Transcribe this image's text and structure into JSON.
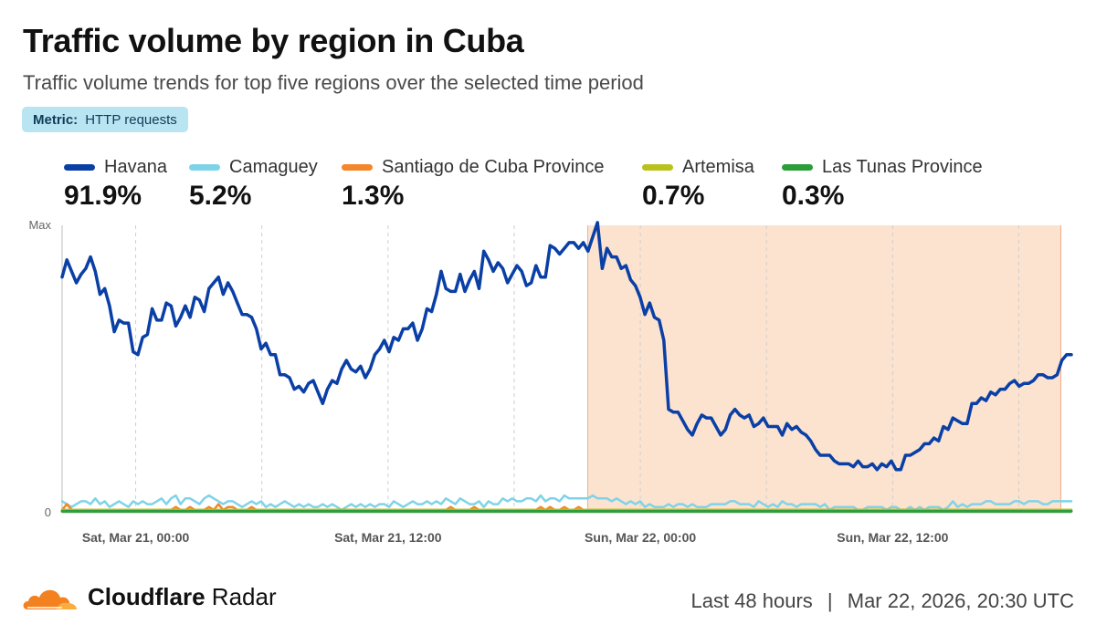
{
  "header": {
    "title": "Traffic volume by region in Cuba",
    "subtitle": "Traffic volume trends for top five regions over the selected time period",
    "metric_label": "Metric:",
    "metric_value": "HTTP requests"
  },
  "legend": [
    {
      "name": "Havana",
      "share": "91.9%",
      "color": "#0a3fa6"
    },
    {
      "name": "Camaguey",
      "share": "5.2%",
      "color": "#7fd3e8"
    },
    {
      "name": "Santiago de Cuba Province",
      "share": "1.3%",
      "color": "#f5862a"
    },
    {
      "name": "Artemisa",
      "share": "0.7%",
      "color": "#b9c21c"
    },
    {
      "name": "Las Tunas Province",
      "share": "0.3%",
      "color": "#2b9e3a"
    }
  ],
  "footer": {
    "brand_bold": "Cloudflare",
    "brand_light": " Radar",
    "period": "Last 48 hours",
    "separator": "|",
    "timestamp": "Mar 22, 2026, 20:30 UTC"
  },
  "chart_data": {
    "type": "line",
    "x_range": [
      "2026-03-20 20:30",
      "2026-03-22 20:30"
    ],
    "x_ticks": [
      "Sat, Mar 21, 00:00",
      "Sat, Mar 21, 12:00",
      "Sun, Mar 22, 00:00",
      "Sun, Mar 22, 12:00"
    ],
    "y_ticks": [
      "0",
      "Max"
    ],
    "ylim": [
      0,
      100
    ],
    "grid": true,
    "highlight_range": [
      "2026-03-21 21:30",
      "2026-03-22 20:00"
    ],
    "highlight_color": "#fbe3d0",
    "series": [
      {
        "name": "Havana",
        "color": "#0a3fa6",
        "values": [
          82,
          88,
          84,
          80,
          83,
          85,
          89,
          84,
          76,
          78,
          72,
          63,
          67,
          66,
          66,
          56,
          55,
          61,
          62,
          71,
          67,
          67,
          73,
          72,
          65,
          68,
          72,
          68,
          75,
          74,
          70,
          78,
          80,
          82,
          76,
          80,
          77,
          73,
          69,
          69,
          68,
          64,
          57,
          59,
          55,
          55,
          48,
          48,
          47,
          43,
          44,
          42,
          45,
          46,
          42,
          38,
          43,
          46,
          45,
          50,
          53,
          50,
          49,
          51,
          47,
          50,
          55,
          57,
          60,
          56,
          61,
          60,
          64,
          64,
          66,
          60,
          64,
          71,
          70,
          76,
          84,
          78,
          77,
          77,
          83,
          77,
          81,
          84,
          78,
          91,
          88,
          84,
          87,
          85,
          80,
          83,
          86,
          84,
          79,
          80,
          86,
          82,
          82,
          93,
          92,
          90,
          92,
          94,
          94,
          92,
          94,
          91,
          96,
          101,
          85,
          92,
          89,
          89,
          85,
          86,
          81,
          79,
          75,
          69,
          73,
          68,
          67,
          60,
          36,
          35,
          35,
          32,
          29,
          27,
          31,
          34,
          33,
          33,
          30,
          27,
          29,
          34,
          36,
          34,
          33,
          34,
          30,
          31,
          33,
          30,
          30,
          30,
          27,
          31,
          29,
          30,
          28,
          27,
          25,
          22,
          20,
          20,
          20,
          18,
          17,
          17,
          17,
          16,
          18,
          16,
          16,
          17,
          15,
          17,
          16,
          18,
          15,
          15,
          20,
          20,
          21,
          22,
          24,
          24,
          26,
          25,
          30,
          29,
          33,
          32,
          31,
          31,
          38,
          38,
          40,
          39,
          42,
          41,
          43,
          43,
          45,
          46,
          44,
          45,
          45,
          46,
          48,
          48,
          47,
          47,
          48,
          53,
          55,
          55
        ],
        "width": 3.5
      },
      {
        "name": "Camaguey",
        "color": "#7fd3e8",
        "values": [
          4,
          3,
          2,
          3,
          4,
          4,
          3,
          5,
          3,
          4,
          2,
          3,
          4,
          3,
          2,
          4,
          3,
          4,
          3,
          3,
          4,
          5,
          3,
          5,
          6,
          3,
          5,
          5,
          4,
          3,
          5,
          6,
          5,
          4,
          3,
          4,
          4,
          3,
          2,
          3,
          4,
          3,
          4,
          2,
          3,
          2,
          3,
          4,
          3,
          2,
          3,
          2,
          3,
          2,
          2,
          3,
          2,
          3,
          2,
          1,
          2,
          3,
          2,
          3,
          2,
          3,
          2,
          3,
          3,
          2,
          4,
          3,
          2,
          3,
          4,
          3,
          3,
          4,
          3,
          4,
          3,
          5,
          4,
          3,
          5,
          4,
          3,
          3,
          4,
          2,
          4,
          3,
          3,
          5,
          4,
          5,
          4,
          4,
          5,
          5,
          4,
          6,
          4,
          5,
          5,
          4,
          6,
          5,
          5,
          5,
          5,
          5,
          6,
          5,
          5,
          5,
          4,
          5,
          4,
          3,
          4,
          3,
          4,
          2,
          3,
          2,
          2,
          2,
          3,
          2,
          3,
          3,
          2,
          3,
          2,
          2,
          2,
          3,
          3,
          3,
          3,
          4,
          4,
          3,
          3,
          3,
          2,
          4,
          3,
          2,
          3,
          2,
          4,
          3,
          3,
          2,
          3,
          3,
          3,
          3,
          2,
          3,
          1,
          2,
          2,
          2,
          2,
          2,
          1,
          1,
          2,
          2,
          2,
          2,
          1,
          2,
          2,
          1,
          1,
          2,
          1,
          2,
          1,
          2,
          2,
          2,
          1,
          2,
          4,
          2,
          3,
          2,
          3,
          3,
          3,
          4,
          4,
          3,
          3,
          3,
          3,
          4,
          4,
          3,
          4,
          4,
          4,
          3,
          3,
          4,
          4,
          4,
          4,
          4
        ],
        "width": 2.5
      },
      {
        "name": "Santiago de Cuba Province",
        "color": "#f5862a",
        "values": [
          1,
          3,
          1,
          1,
          1,
          1,
          1,
          1,
          1,
          1,
          1,
          1,
          1,
          1,
          1,
          1,
          1,
          1,
          1,
          1,
          1,
          1,
          1,
          1,
          2,
          1,
          1,
          2,
          1,
          1,
          1,
          2,
          1,
          3,
          1,
          2,
          2,
          1,
          1,
          1,
          2,
          1,
          1,
          1,
          1,
          1,
          1,
          1,
          1,
          1,
          1,
          1,
          1,
          1,
          1,
          1,
          1,
          1,
          1,
          1,
          1,
          1,
          1,
          1,
          1,
          1,
          1,
          1,
          1,
          1,
          1,
          1,
          1,
          1,
          1,
          1,
          1,
          1,
          1,
          1,
          1,
          1,
          2,
          1,
          1,
          1,
          1,
          2,
          1,
          1,
          1,
          1,
          1,
          1,
          1,
          1,
          1,
          1,
          1,
          1,
          1,
          2,
          1,
          2,
          1,
          1,
          2,
          1,
          1,
          2,
          1,
          1,
          1,
          1,
          1,
          1,
          1,
          1,
          1,
          1,
          1,
          1,
          1,
          1,
          1,
          1,
          1,
          1,
          1,
          1,
          1,
          1,
          1,
          1,
          1,
          1,
          1,
          1,
          1,
          1,
          1,
          1,
          1,
          1,
          1,
          1,
          1,
          1,
          1,
          1,
          1,
          1,
          1,
          1,
          1,
          1,
          1,
          1,
          1,
          1,
          1,
          1,
          1,
          1,
          1,
          1,
          1,
          1,
          1,
          1,
          1,
          1,
          1,
          1,
          1,
          1,
          1,
          1,
          1,
          1,
          1,
          1,
          1,
          1,
          1,
          1,
          1,
          1,
          1,
          1,
          1,
          1,
          1,
          1,
          1,
          1,
          1,
          1,
          1,
          1,
          1,
          1,
          1,
          1,
          1,
          1,
          1,
          1,
          1,
          1,
          1,
          1,
          1,
          1
        ],
        "width": 2.5
      },
      {
        "name": "Artemisa",
        "color": "#b9c21c",
        "values": [
          1,
          1,
          1,
          1,
          1,
          1,
          1,
          1,
          1,
          1,
          1,
          1,
          1,
          1,
          1,
          1,
          1,
          1,
          1,
          1,
          1,
          1,
          1,
          1,
          1,
          1,
          1,
          1,
          1,
          1,
          1,
          1,
          1,
          1,
          1,
          1,
          1,
          1,
          1,
          1,
          1,
          1,
          1,
          1,
          1,
          1,
          1,
          1,
          1,
          1,
          1,
          1,
          1,
          1,
          1,
          1,
          1,
          1,
          1,
          1,
          1,
          1,
          1,
          1,
          1,
          1,
          1,
          1,
          1,
          1,
          1,
          1,
          1,
          1,
          1,
          1,
          1,
          1,
          1,
          1,
          1,
          1,
          1,
          1,
          1,
          1,
          1,
          1,
          1,
          1,
          1,
          1,
          1,
          1,
          1,
          1,
          1,
          1,
          1,
          1,
          1,
          1,
          1,
          1,
          1,
          1,
          1,
          1,
          1,
          1,
          1,
          1,
          1,
          1,
          1,
          1,
          1,
          1,
          1,
          1,
          1,
          1,
          1,
          1,
          1,
          1,
          1,
          1,
          1,
          1,
          1,
          1,
          1,
          1,
          1,
          1,
          1,
          1,
          1,
          1,
          1,
          1,
          1,
          1,
          1,
          1,
          1,
          1,
          1,
          1,
          1,
          1,
          1,
          1,
          1,
          1,
          1,
          1,
          1,
          1,
          1,
          1,
          1,
          1,
          1,
          1,
          1,
          1,
          1,
          1,
          1,
          1,
          1,
          1,
          1,
          1,
          1,
          1,
          1,
          1,
          1,
          1,
          1,
          1,
          1,
          1,
          1,
          1,
          1,
          1,
          1,
          1,
          1,
          1,
          1,
          1,
          1,
          1,
          1,
          1,
          1,
          1,
          1,
          1,
          1,
          1,
          1,
          1,
          1,
          1,
          1,
          1,
          1,
          1
        ],
        "width": 2.5
      },
      {
        "name": "Las Tunas Province",
        "color": "#2b9e3a",
        "values": [
          0.5,
          0.5,
          0.5,
          0.5,
          0.5,
          0.5,
          0.5,
          0.5,
          0.5,
          0.5,
          0.5,
          0.5,
          0.5,
          0.5,
          0.5,
          0.5,
          0.5,
          0.5,
          0.5,
          0.5,
          0.5,
          0.5,
          0.5,
          0.5,
          0.5,
          0.5,
          0.5,
          0.5,
          0.5,
          0.5,
          0.5,
          0.5,
          0.5,
          0.5,
          0.5,
          0.5,
          0.5,
          0.5,
          0.5,
          0.5,
          0.5,
          0.5,
          0.5,
          0.5,
          0.5,
          0.5,
          0.5,
          0.5,
          0.5,
          0.5,
          0.5,
          0.5,
          0.5,
          0.5,
          0.5,
          0.5,
          0.5,
          0.5,
          0.5,
          0.5,
          0.5,
          0.5,
          0.5,
          0.5,
          0.5,
          0.5,
          0.5,
          0.5,
          0.5,
          0.5,
          0.5,
          0.5,
          0.5,
          0.5,
          0.5,
          0.5,
          0.5,
          0.5,
          0.5,
          0.5,
          0.5,
          0.5,
          0.5,
          0.5,
          0.5,
          0.5,
          0.5,
          0.5,
          0.5,
          0.5,
          0.5,
          0.5,
          0.5,
          0.5,
          0.5,
          0.5,
          0.5,
          0.5,
          0.5,
          0.5,
          0.5,
          0.5,
          0.5,
          0.5,
          0.5,
          0.5,
          0.5,
          0.5,
          0.5,
          0.5,
          0.5,
          0.5,
          0.5,
          0.5,
          0.5,
          0.5,
          0.5,
          0.5,
          0.5,
          0.5,
          0.5,
          0.5,
          0.5,
          0.5,
          0.5,
          0.5,
          0.5,
          0.5,
          0.5,
          0.5,
          0.5,
          0.5,
          0.5,
          0.5,
          0.5,
          0.5,
          0.5,
          0.5,
          0.5,
          0.5,
          0.5,
          0.5,
          0.5,
          0.5,
          0.5,
          0.5,
          0.5,
          0.5,
          0.5,
          0.5,
          0.5,
          0.5,
          0.5,
          0.5,
          0.5,
          0.5,
          0.5,
          0.5,
          0.5,
          0.5,
          0.5,
          0.5,
          0.5,
          0.5,
          0.5,
          0.5,
          0.5,
          0.5,
          0.5,
          0.5,
          0.5,
          0.5,
          0.5,
          0.5,
          0.5,
          0.5,
          0.5,
          0.5,
          0.5,
          0.5,
          0.5,
          0.5,
          0.5,
          0.5,
          0.5,
          0.5,
          0.5,
          0.5,
          0.5,
          0.5,
          0.5,
          0.5,
          0.5,
          0.5,
          0.5,
          0.5,
          0.5,
          0.5,
          0.5,
          0.5,
          0.5,
          0.5,
          0.5,
          0.5,
          0.5,
          0.5,
          0.5,
          0.5,
          0.5,
          0.5,
          0.5,
          0.5,
          0.5,
          0.5,
          0.5,
          0.5
        ],
        "width": 3
      }
    ]
  }
}
